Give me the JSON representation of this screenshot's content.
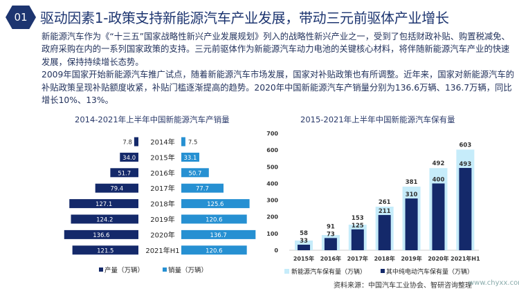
{
  "header": {
    "badge": "01",
    "title": "驱动因素1-政策支持新能源汽车产业发展，带动三元前驱体产业增长"
  },
  "body": {
    "paragraphs": [
      "新能源汽车作为《“十三五”国家战略性新兴产业发展规划》列入的战略性新兴产业之一，受到了包括财政补贴、购置税减免、政府采购在内的一系列国家政策的支持。三元前驱体作为新能源汽车动力电池的关键核心材料，将伴随新能源汽车产业的快速发展，保持持续增长态势。",
      "2009年国家开始新能源汽车推广试点，随着新能源汽车市场发展，国家对补贴政策也有所调整。近年来，国家对新能源汽车的补贴政策呈现补贴额度收紧，补贴门槛逐渐提高的趋势。2020年中国新能源汽车产销量分别为136.6万辆、136.7万辆，同比增长10%、13%。"
    ]
  },
  "colors": {
    "navy": "#14296a",
    "sales": "#2690d2",
    "total": "#c6ecfa",
    "accent": "#1d3570"
  },
  "chart_data": [
    {
      "type": "bar",
      "orientation": "horizontal-butterfly",
      "title": "2014-2021年上半年中国新能源汽车产销量",
      "categories": [
        "2014年",
        "2015年",
        "2016年",
        "2017年",
        "2018年",
        "2019年",
        "2020年",
        "2021年H1"
      ],
      "series": [
        {
          "name": "产量（万辆）",
          "values": [
            7.8,
            34.0,
            51.7,
            79.4,
            127.1,
            124.2,
            136.6,
            121.5
          ]
        },
        {
          "name": "销量（万辆）",
          "values": [
            7.5,
            33.1,
            50.7,
            77.7,
            125.6,
            120.6,
            136.7,
            120.6
          ]
        }
      ],
      "legend": "bottom",
      "grid": false
    },
    {
      "type": "bar",
      "title": "2015-2021年上半年中国新能源汽车保有量",
      "categories": [
        "2015年",
        "2016年",
        "2017年",
        "2018年",
        "2019年",
        "2020年",
        "2021年H1"
      ],
      "series": [
        {
          "name": "新能源汽车保有量（万辆）",
          "values": [
            58,
            91,
            153,
            261,
            381,
            492,
            603
          ]
        },
        {
          "name": "其中纯电动汽车保有量（万辆）",
          "values": [
            33,
            73,
            125,
            211,
            310,
            400,
            493
          ]
        }
      ],
      "ylim": [
        0,
        700
      ],
      "yticks": [
        "0",
        "100",
        "200",
        "300",
        "400",
        "500",
        "600",
        "700"
      ],
      "legend": "bottom",
      "grid": false
    }
  ],
  "source": "资料来源：中国汽车工业协会、智研咨询整理",
  "url": "www.chyxx.com"
}
